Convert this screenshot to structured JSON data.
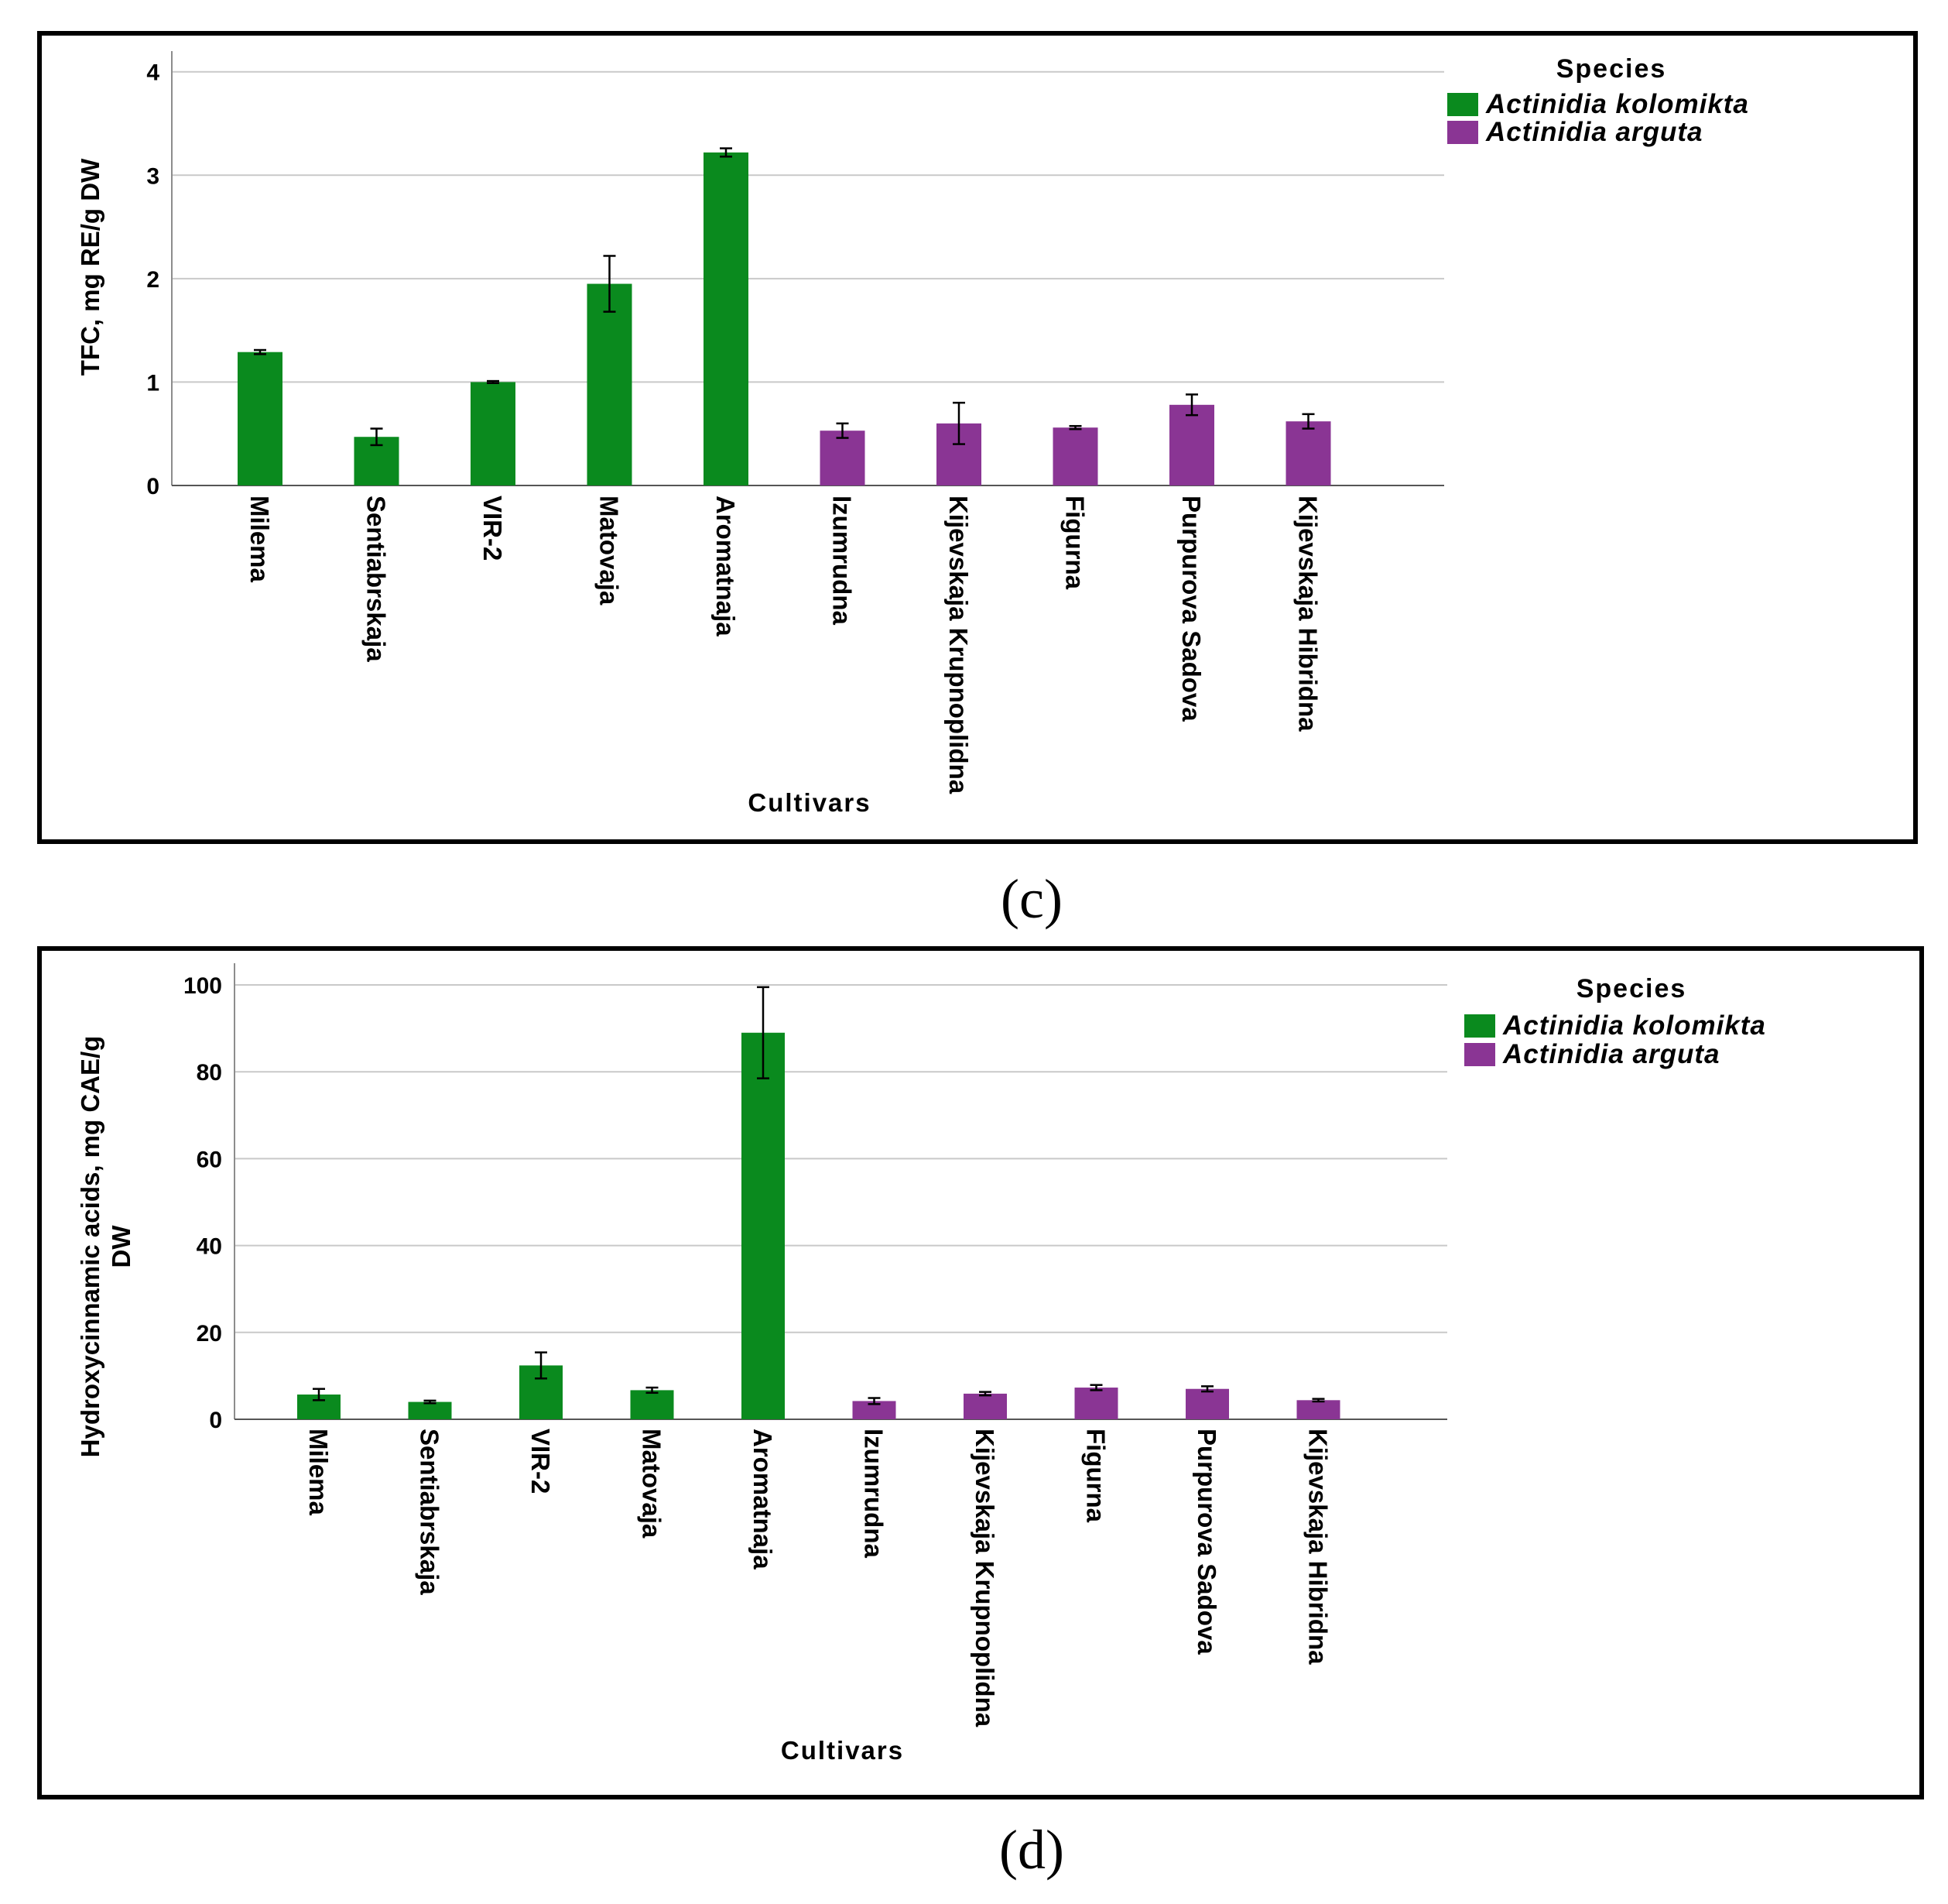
{
  "figures": [
    {
      "panel_label": "(c)",
      "chart_data": {
        "type": "bar",
        "title": "",
        "xlabel": "Cultivars",
        "ylabel": "TFC, mg RE/g DW",
        "ylim": [
          0,
          4.2
        ],
        "yticks": [
          0,
          1,
          2,
          3,
          4
        ],
        "grid": true,
        "legend_position": "top-right",
        "legend_title": "Species",
        "legend": [
          {
            "name": "Actinidia kolomikta",
            "color": "#0a8a1e"
          },
          {
            "name": "Actinidia arguta",
            "color": "#8a3594"
          }
        ],
        "categories": [
          "Milema",
          "Sentiabrskaja",
          "VIR-2",
          "Matovaja",
          "Aromatnaja",
          "Izumrudna",
          "Kijevskaja Krupnoplidna",
          "Figurna",
          "Purpurova Sadova",
          "Kijevskaja Hibridna"
        ],
        "species_index": [
          0,
          0,
          0,
          0,
          0,
          1,
          1,
          1,
          1,
          1
        ],
        "values": [
          1.29,
          0.47,
          1.0,
          1.95,
          3.22,
          0.53,
          0.6,
          0.56,
          0.78,
          0.62
        ],
        "errors": [
          0.02,
          0.08,
          0.01,
          0.27,
          0.04,
          0.07,
          0.2,
          0.015,
          0.1,
          0.07
        ]
      }
    },
    {
      "panel_label": "(d)",
      "chart_data": {
        "type": "bar",
        "title": "",
        "xlabel": "Cultivars",
        "ylabel": "Hydroxycinnamic acids, mg CAE/g DW",
        "ylabel_lines": [
          "Hydroxycinnamic acids, mg CAE/g",
          "DW"
        ],
        "ylim": [
          0,
          105
        ],
        "yticks": [
          0,
          20,
          40,
          60,
          80,
          100
        ],
        "grid": true,
        "legend_position": "top-right",
        "legend_title": "Species",
        "legend": [
          {
            "name": "Actinidia kolomikta",
            "color": "#0a8a1e"
          },
          {
            "name": "Actinidia arguta",
            "color": "#8a3594"
          }
        ],
        "categories": [
          "Milema",
          "Sentiabrskaja",
          "VIR-2",
          "Matovaja",
          "Aromatnaja",
          "Izumrudna",
          "Kijevskaja Krupnoplidna",
          "Figurna",
          "Purpurova Sadova",
          "Kijevskaja Hibridna"
        ],
        "species_index": [
          0,
          0,
          0,
          0,
          0,
          1,
          1,
          1,
          1,
          1
        ],
        "values": [
          5.7,
          4.0,
          12.4,
          6.7,
          89.0,
          4.2,
          5.9,
          7.3,
          7.0,
          4.4
        ],
        "errors": [
          1.3,
          0.3,
          3.0,
          0.6,
          10.5,
          0.7,
          0.4,
          0.6,
          0.6,
          0.3
        ]
      }
    }
  ]
}
